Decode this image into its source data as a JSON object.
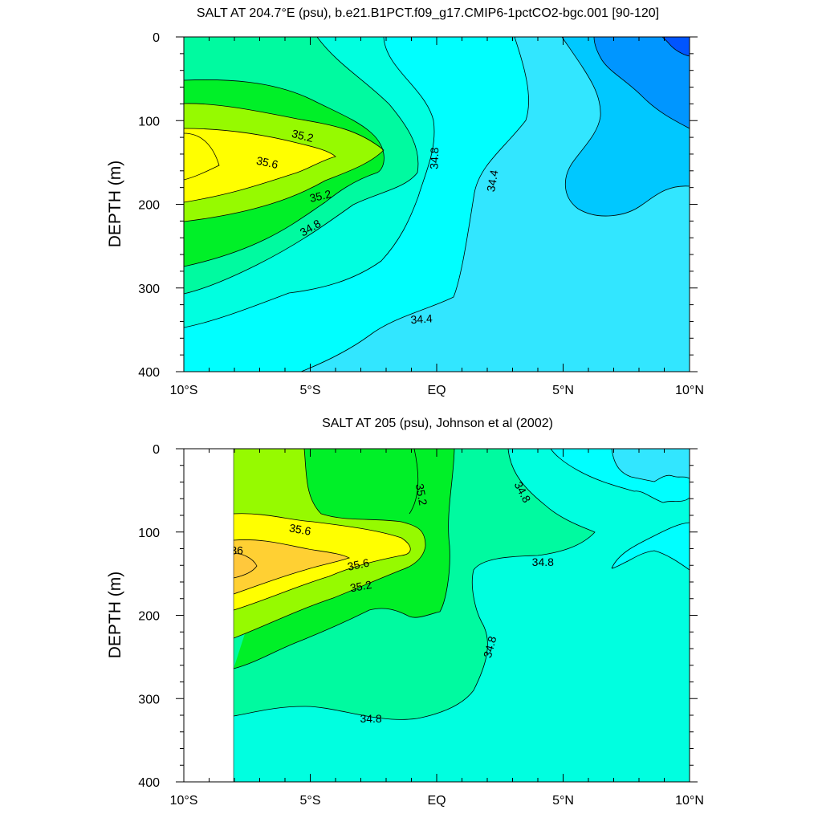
{
  "chart_data": [
    {
      "type": "contour",
      "title": "SALT AT 204.7°E (psu), b.e21.B1PCT.f09_g17.CMIP6-1pctCO2-bgc.001 [90-120]",
      "ylabel": "DEPTH (m)",
      "xlim": [
        -10,
        10
      ],
      "ylim": [
        400,
        0
      ],
      "xticks": [
        "10°S",
        "5°S",
        "EQ",
        "5°N",
        "10°N"
      ],
      "yticks": [
        "0",
        "100",
        "200",
        "300",
        "400"
      ],
      "contour_levels": [
        34.0,
        34.2,
        34.4,
        34.6,
        34.8,
        35.0,
        35.2,
        35.4,
        35.6
      ],
      "contour_labels": [
        {
          "text": "35.2",
          "lat": -5.3,
          "depth": 118,
          "angle": 14
        },
        {
          "text": "35.6",
          "lat": -6.7,
          "depth": 150,
          "angle": 12
        },
        {
          "text": "34.8",
          "lat": -0.1,
          "depth": 145,
          "angle": -88
        },
        {
          "text": "34.4",
          "lat": 2.2,
          "depth": 172,
          "angle": -80
        },
        {
          "text": "35.2",
          "lat": -4.6,
          "depth": 190,
          "angle": -13
        },
        {
          "text": "34.8",
          "lat": -5.0,
          "depth": 228,
          "angle": -30
        },
        {
          "text": "34.4",
          "lat": -0.6,
          "depth": 337,
          "angle": -4
        }
      ],
      "data_extent": [
        -10,
        10
      ],
      "legend": "none",
      "grid": false
    },
    {
      "type": "contour",
      "title": "SALT AT 205 (psu), Johnson et al (2002)",
      "ylabel": "DEPTH (m)",
      "xlim": [
        -10,
        10
      ],
      "ylim": [
        400,
        0
      ],
      "xticks": [
        "10°S",
        "5°S",
        "EQ",
        "5°N",
        "10°N"
      ],
      "yticks": [
        "0",
        "100",
        "200",
        "300",
        "400"
      ],
      "contour_levels": [
        34.6,
        34.8,
        35.0,
        35.2,
        35.4,
        35.6,
        35.8,
        36.0
      ],
      "contour_labels": [
        {
          "text": "35.6",
          "lat": -5.4,
          "depth": 97,
          "angle": 10
        },
        {
          "text": "36",
          "lat": -7.9,
          "depth": 122,
          "angle": 0
        },
        {
          "text": "35.6",
          "lat": -3.1,
          "depth": 139,
          "angle": -12
        },
        {
          "text": "35.2",
          "lat": -3.0,
          "depth": 165,
          "angle": -10
        },
        {
          "text": "35.2",
          "lat": -0.6,
          "depth": 55,
          "angle": 80
        },
        {
          "text": "34.8",
          "lat": 3.4,
          "depth": 52,
          "angle": 62
        },
        {
          "text": "34.8",
          "lat": 4.2,
          "depth": 136,
          "angle": 0
        },
        {
          "text": "34.8",
          "lat": 2.1,
          "depth": 238,
          "angle": -75
        },
        {
          "text": "34.8",
          "lat": -2.6,
          "depth": 324,
          "angle": 0
        }
      ],
      "data_extent": [
        -8,
        10
      ],
      "legend": "none",
      "grid": false
    }
  ],
  "colors": {
    "s36": "#ffc83c",
    "s35_6": "#ffff00",
    "s35_4": "#96fa00",
    "s35_2": "#00f028",
    "s35_0": "#00faa0",
    "s34_8": "#00ffe0",
    "s34_6": "#00ffff",
    "s34_4": "#32e6ff",
    "s34_2": "#00c8ff",
    "s34_0": "#0096ff",
    "s33_8": "#0055ff"
  }
}
